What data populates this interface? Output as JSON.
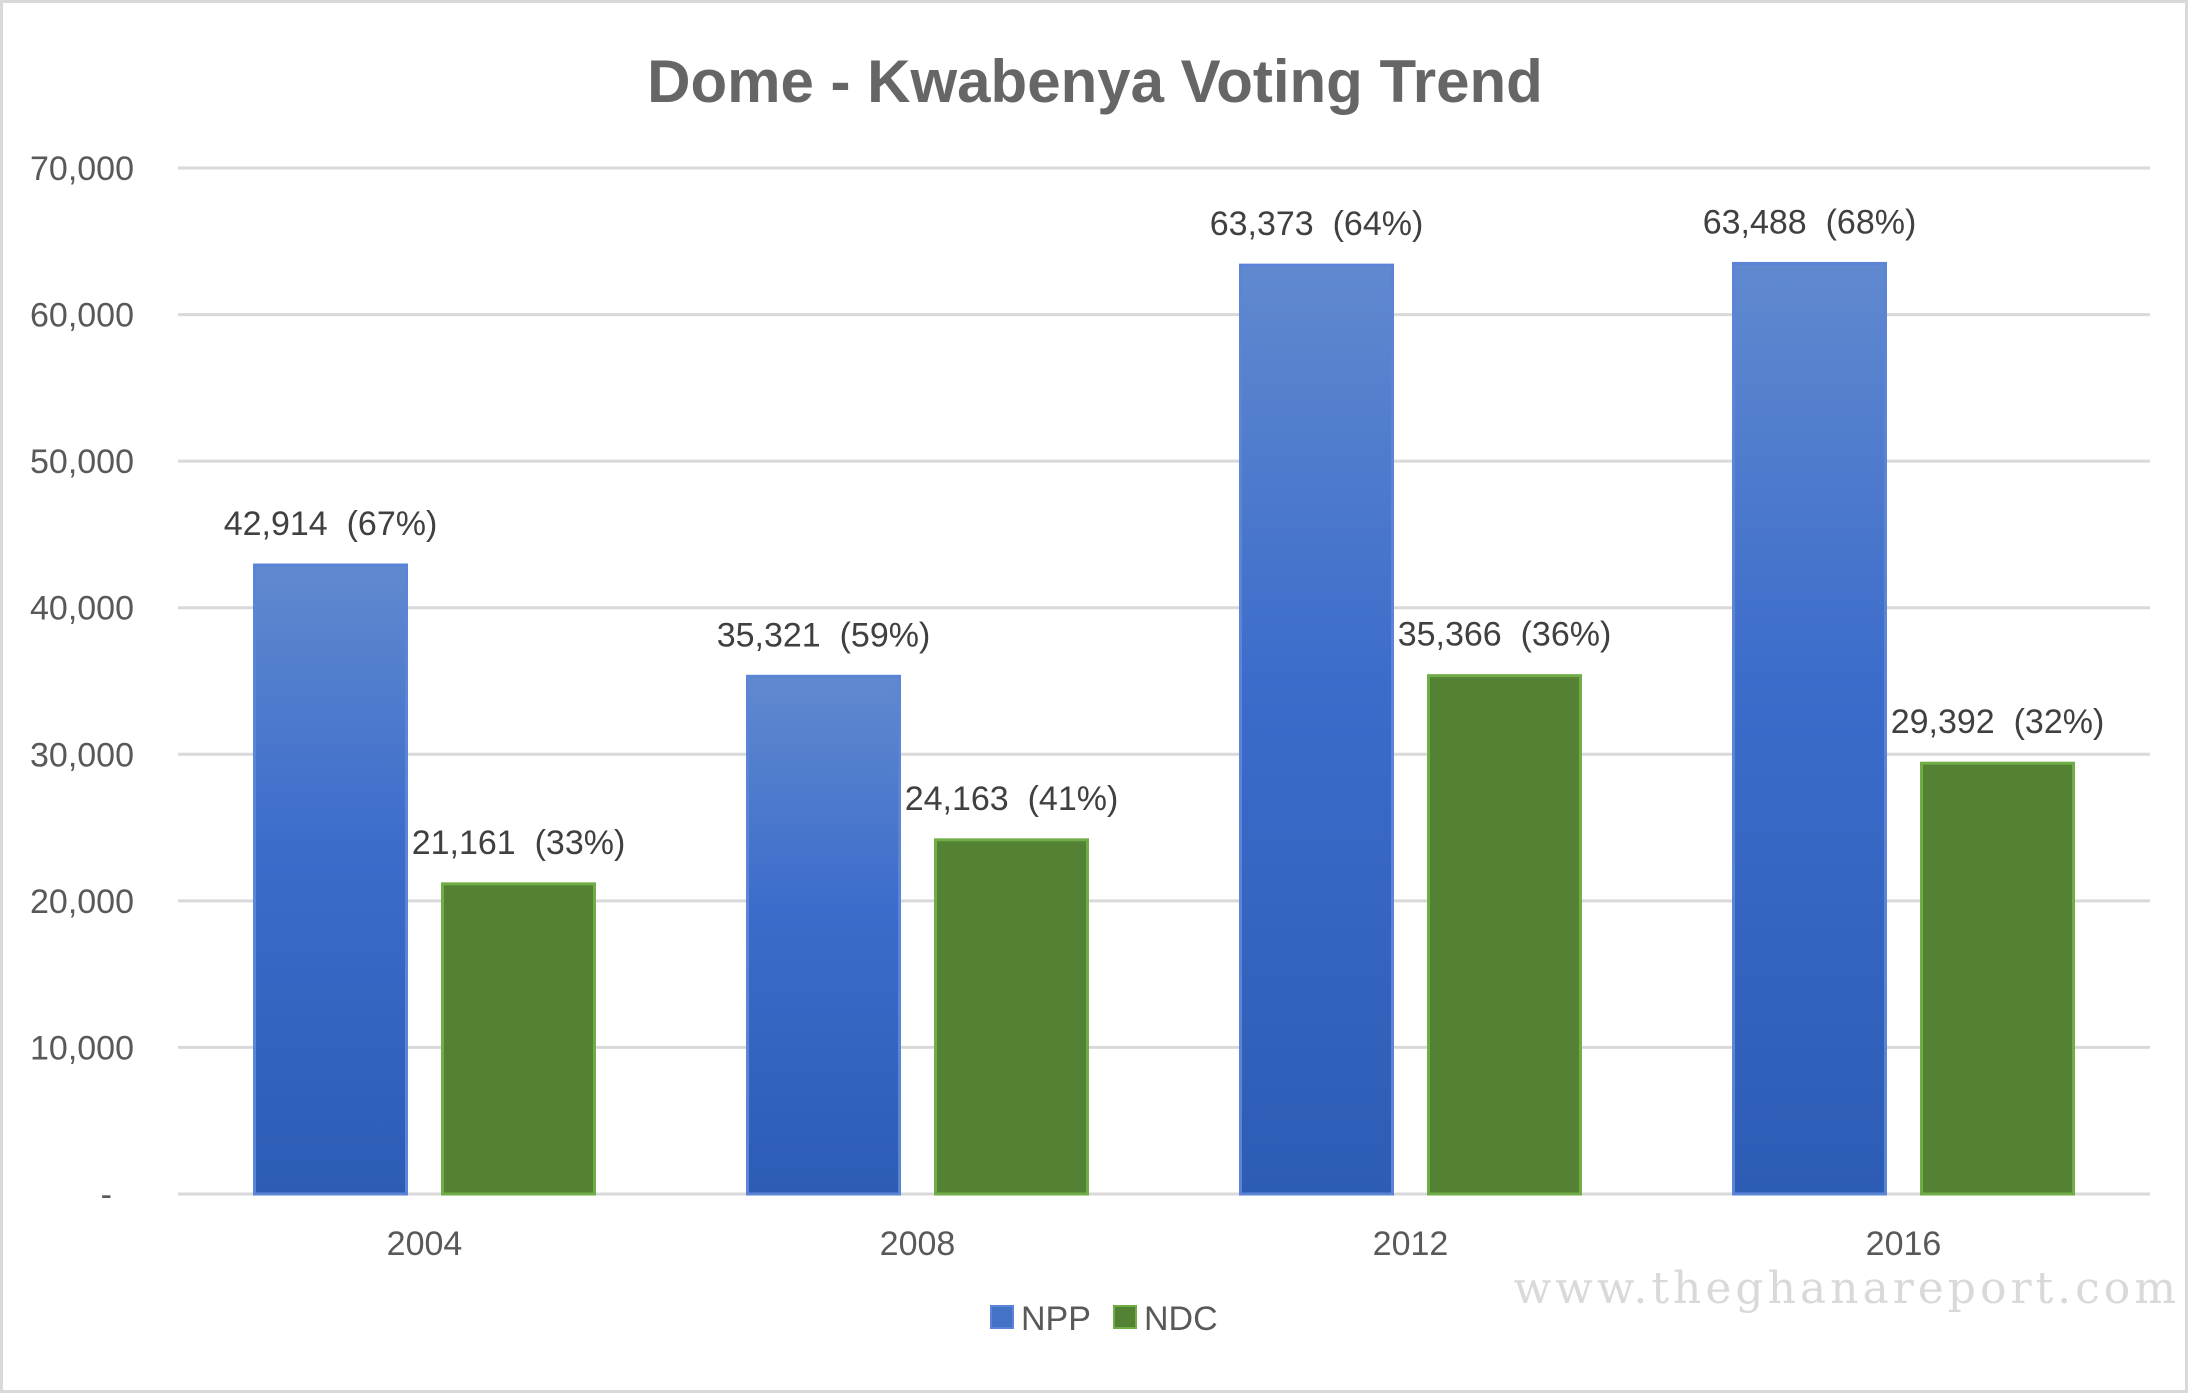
{
  "chart_data": {
    "type": "bar",
    "title": "Dome - Kwabenya Voting Trend",
    "categories": [
      "2004",
      "2008",
      "2012",
      "2016"
    ],
    "series": [
      {
        "name": "NPP",
        "color": "#4472c4",
        "values": [
          42914,
          35321,
          63373,
          63488
        ],
        "labels": [
          "42,914  (67%)",
          "35,321  (59%)",
          "63,373  (64%)",
          "63,488  (68%)"
        ]
      },
      {
        "name": "NDC",
        "color": "#548235",
        "values": [
          21161,
          24163,
          35366,
          29392
        ],
        "labels": [
          "21,161  (33%)",
          "24,163  (41%)",
          "35,366  (36%)",
          "29,392  (32%)"
        ]
      }
    ],
    "ylim": [
      0,
      70000
    ],
    "yticks": [
      0,
      10000,
      20000,
      30000,
      40000,
      50000,
      60000,
      70000
    ],
    "ytick_labels": [
      "-",
      "10,000",
      "20,000",
      "30,000",
      "40,000",
      "50,000",
      "60,000",
      "70,000"
    ],
    "xlabel": "",
    "ylabel": "",
    "grid": true,
    "legend": {
      "position": "bottom-center",
      "entries": [
        "NPP",
        "NDC"
      ]
    }
  },
  "watermark": "www.theghanareport.com"
}
